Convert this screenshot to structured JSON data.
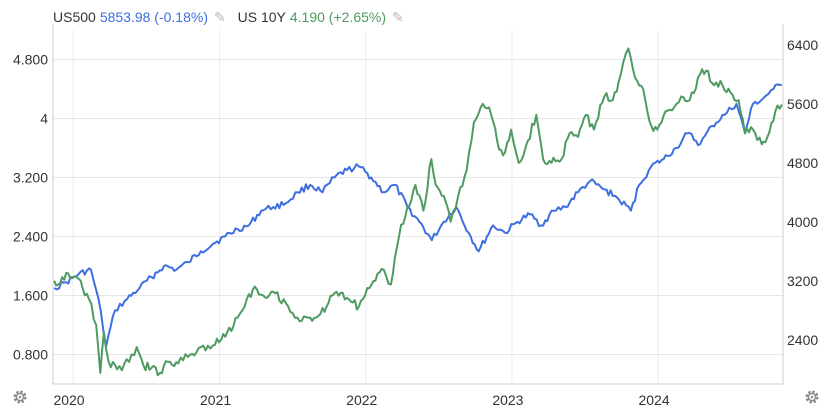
{
  "legend": [
    {
      "name": "US500",
      "value": "5853.98 (-0.18%)",
      "color": "#3e6ee0"
    },
    {
      "name": "US 10Y",
      "value": "4.190 (+2.65%)",
      "color": "#4f9a63"
    }
  ],
  "icons": {
    "edit": "pencil-icon",
    "settings": "gear-icon"
  },
  "chart_data": {
    "type": "line",
    "title": "",
    "xlabel": "",
    "x_ticks": [
      "2020",
      "2021",
      "2022",
      "2023",
      "2024"
    ],
    "y_left": {
      "label": "",
      "ticks": [
        "0.800",
        "1.600",
        "2.400",
        "3.200",
        "4",
        "4.800"
      ],
      "range": [
        0.4,
        5.2
      ]
    },
    "y_right": {
      "label": "",
      "ticks": [
        "2400",
        "3200",
        "4000",
        "4800",
        "5600",
        "6400"
      ],
      "range": [
        1800,
        6600
      ]
    },
    "grid": true,
    "series": [
      {
        "name": "US500",
        "axis": "right",
        "color": "#3e6ee0",
        "points": [
          [
            "2019-11-15",
            3100
          ],
          [
            "2019-12-15",
            3180
          ],
          [
            "2020-01-15",
            3290
          ],
          [
            "2020-02-15",
            3350
          ],
          [
            "2020-03-10",
            2800
          ],
          [
            "2020-03-23",
            2300
          ],
          [
            "2020-04-15",
            2800
          ],
          [
            "2020-05-15",
            2950
          ],
          [
            "2020-06-15",
            3100
          ],
          [
            "2020-07-15",
            3250
          ],
          [
            "2020-08-15",
            3400
          ],
          [
            "2020-09-15",
            3350
          ],
          [
            "2020-10-15",
            3450
          ],
          [
            "2020-11-15",
            3600
          ],
          [
            "2020-12-15",
            3700
          ],
          [
            "2021-01-15",
            3800
          ],
          [
            "2021-02-15",
            3900
          ],
          [
            "2021-03-15",
            3950
          ],
          [
            "2021-04-15",
            4150
          ],
          [
            "2021-05-15",
            4200
          ],
          [
            "2021-06-15",
            4250
          ],
          [
            "2021-07-15",
            4400
          ],
          [
            "2021-08-15",
            4500
          ],
          [
            "2021-09-15",
            4400
          ],
          [
            "2021-10-15",
            4600
          ],
          [
            "2021-11-15",
            4700
          ],
          [
            "2021-12-15",
            4750
          ],
          [
            "2022-01-15",
            4600
          ],
          [
            "2022-02-15",
            4400
          ],
          [
            "2022-03-15",
            4500
          ],
          [
            "2022-04-15",
            4200
          ],
          [
            "2022-05-15",
            4000
          ],
          [
            "2022-06-15",
            3750
          ],
          [
            "2022-07-15",
            4000
          ],
          [
            "2022-08-15",
            4200
          ],
          [
            "2022-09-15",
            3850
          ],
          [
            "2022-10-10",
            3600
          ],
          [
            "2022-11-15",
            3950
          ],
          [
            "2022-12-15",
            3850
          ],
          [
            "2023-01-15",
            4000
          ],
          [
            "2023-02-15",
            4100
          ],
          [
            "2023-03-15",
            3950
          ],
          [
            "2023-04-15",
            4150
          ],
          [
            "2023-05-15",
            4200
          ],
          [
            "2023-06-15",
            4400
          ],
          [
            "2023-07-15",
            4550
          ],
          [
            "2023-08-15",
            4450
          ],
          [
            "2023-09-15",
            4350
          ],
          [
            "2023-10-25",
            4150
          ],
          [
            "2023-11-15",
            4500
          ],
          [
            "2023-12-15",
            4750
          ],
          [
            "2024-01-15",
            4850
          ],
          [
            "2024-02-15",
            5000
          ],
          [
            "2024-03-15",
            5200
          ],
          [
            "2024-04-15",
            5050
          ],
          [
            "2024-05-15",
            5300
          ],
          [
            "2024-06-15",
            5450
          ],
          [
            "2024-07-15",
            5600
          ],
          [
            "2024-08-05",
            5200
          ],
          [
            "2024-08-25",
            5600
          ],
          [
            "2024-09-15",
            5650
          ],
          [
            "2024-10-15",
            5800
          ],
          [
            "2024-11-05",
            5854
          ]
        ]
      },
      {
        "name": "US 10Y",
        "axis": "left",
        "color": "#4f9a63",
        "points": [
          [
            "2019-11-15",
            1.8
          ],
          [
            "2019-11-25",
            1.75
          ],
          [
            "2019-12-05",
            1.85
          ],
          [
            "2019-12-20",
            1.9
          ],
          [
            "2020-01-10",
            1.85
          ],
          [
            "2020-01-25",
            1.7
          ],
          [
            "2020-02-10",
            1.55
          ],
          [
            "2020-02-28",
            1.2
          ],
          [
            "2020-03-09",
            0.55
          ],
          [
            "2020-03-18",
            1.1
          ],
          [
            "2020-03-30",
            0.7
          ],
          [
            "2020-04-20",
            0.6
          ],
          [
            "2020-05-20",
            0.7
          ],
          [
            "2020-06-08",
            0.9
          ],
          [
            "2020-06-25",
            0.65
          ],
          [
            "2020-07-15",
            0.62
          ],
          [
            "2020-08-05",
            0.55
          ],
          [
            "2020-08-25",
            0.7
          ],
          [
            "2020-09-20",
            0.68
          ],
          [
            "2020-10-20",
            0.8
          ],
          [
            "2020-11-15",
            0.9
          ],
          [
            "2020-12-15",
            0.92
          ],
          [
            "2021-01-05",
            1.0
          ],
          [
            "2021-01-20",
            1.1
          ],
          [
            "2021-02-15",
            1.3
          ],
          [
            "2021-03-10",
            1.55
          ],
          [
            "2021-03-30",
            1.72
          ],
          [
            "2021-04-20",
            1.6
          ],
          [
            "2021-05-15",
            1.65
          ],
          [
            "2021-06-15",
            1.5
          ],
          [
            "2021-07-20",
            1.25
          ],
          [
            "2021-08-15",
            1.3
          ],
          [
            "2021-09-10",
            1.35
          ],
          [
            "2021-09-30",
            1.5
          ],
          [
            "2021-10-20",
            1.65
          ],
          [
            "2021-11-20",
            1.55
          ],
          [
            "2021-12-15",
            1.45
          ],
          [
            "2022-01-05",
            1.7
          ],
          [
            "2022-01-25",
            1.8
          ],
          [
            "2022-02-15",
            1.95
          ],
          [
            "2022-03-05",
            1.75
          ],
          [
            "2022-03-25",
            2.4
          ],
          [
            "2022-04-15",
            2.8
          ],
          [
            "2022-05-05",
            3.1
          ],
          [
            "2022-05-25",
            2.75
          ],
          [
            "2022-06-14",
            3.45
          ],
          [
            "2022-06-25",
            3.1
          ],
          [
            "2022-07-15",
            2.95
          ],
          [
            "2022-08-01",
            2.6
          ],
          [
            "2022-08-20",
            2.95
          ],
          [
            "2022-09-10",
            3.3
          ],
          [
            "2022-09-28",
            3.95
          ],
          [
            "2022-10-20",
            4.2
          ],
          [
            "2022-11-05",
            4.15
          ],
          [
            "2022-11-25",
            3.7
          ],
          [
            "2022-12-10",
            3.5
          ],
          [
            "2022-12-30",
            3.85
          ],
          [
            "2023-01-18",
            3.4
          ],
          [
            "2023-02-10",
            3.7
          ],
          [
            "2023-03-03",
            4.05
          ],
          [
            "2023-03-20",
            3.45
          ],
          [
            "2023-04-10",
            3.4
          ],
          [
            "2023-05-05",
            3.45
          ],
          [
            "2023-05-25",
            3.8
          ],
          [
            "2023-06-15",
            3.75
          ],
          [
            "2023-07-05",
            4.05
          ],
          [
            "2023-07-25",
            3.85
          ],
          [
            "2023-08-20",
            4.3
          ],
          [
            "2023-09-10",
            4.25
          ],
          [
            "2023-09-30",
            4.6
          ],
          [
            "2023-10-19",
            4.95
          ],
          [
            "2023-11-05",
            4.55
          ],
          [
            "2023-11-25",
            4.4
          ],
          [
            "2023-12-15",
            3.9
          ],
          [
            "2023-12-30",
            3.85
          ],
          [
            "2024-01-20",
            4.1
          ],
          [
            "2024-02-10",
            4.15
          ],
          [
            "2024-02-28",
            4.3
          ],
          [
            "2024-03-20",
            4.25
          ],
          [
            "2024-04-15",
            4.6
          ],
          [
            "2024-04-30",
            4.65
          ],
          [
            "2024-05-20",
            4.45
          ],
          [
            "2024-06-10",
            4.45
          ],
          [
            "2024-06-30",
            4.35
          ],
          [
            "2024-07-20",
            4.25
          ],
          [
            "2024-08-05",
            3.8
          ],
          [
            "2024-08-25",
            3.85
          ],
          [
            "2024-09-16",
            3.65
          ],
          [
            "2024-09-30",
            3.75
          ],
          [
            "2024-10-20",
            4.1
          ],
          [
            "2024-11-05",
            4.19
          ]
        ]
      }
    ]
  }
}
